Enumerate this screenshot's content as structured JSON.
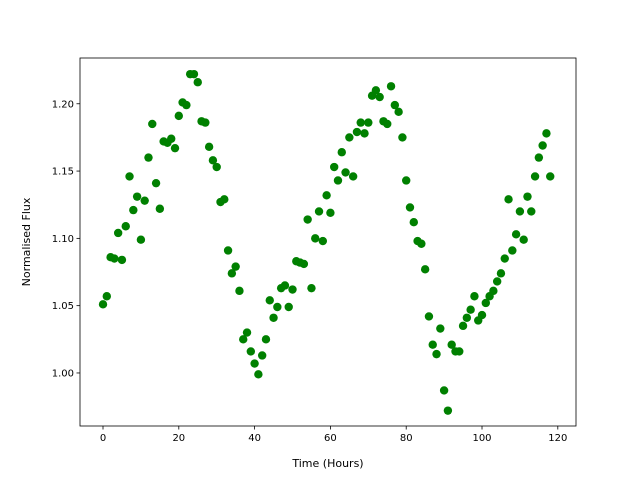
{
  "chart_data": {
    "type": "scatter",
    "x_label": "Time (Hours)",
    "y_label": "Normalised Flux",
    "color": "#008000",
    "x": [
      0,
      1,
      2,
      3,
      4,
      5,
      6,
      7,
      8,
      9,
      10,
      11,
      12,
      13,
      14,
      15,
      16,
      17,
      18,
      19,
      20,
      21,
      22,
      23,
      24,
      25,
      26,
      27,
      28,
      29,
      30,
      31,
      32,
      33,
      34,
      35,
      36,
      37,
      38,
      39,
      40,
      41,
      42,
      43,
      44,
      45,
      46,
      47,
      48,
      49,
      50,
      51,
      52,
      53,
      54,
      55,
      56,
      57,
      58,
      59,
      60,
      61,
      62,
      63,
      64,
      65,
      66,
      67,
      68,
      69,
      70,
      71,
      72,
      73,
      74,
      75,
      76,
      77,
      78,
      79,
      80,
      81,
      82,
      83,
      84,
      85,
      86,
      87,
      88,
      89,
      90,
      91,
      92,
      93,
      94,
      95,
      96,
      97,
      98,
      99,
      100,
      101,
      102,
      103,
      104,
      105,
      106,
      107,
      108,
      109,
      110,
      111,
      112,
      113,
      114,
      115,
      116,
      117,
      118
    ],
    "values": [
      1.051,
      1.057,
      1.086,
      1.085,
      1.104,
      1.084,
      1.109,
      1.146,
      1.121,
      1.131,
      1.099,
      1.128,
      1.16,
      1.185,
      1.141,
      1.122,
      1.172,
      1.171,
      1.174,
      1.167,
      1.191,
      1.201,
      1.199,
      1.222,
      1.222,
      1.216,
      1.187,
      1.186,
      1.168,
      1.158,
      1.153,
      1.127,
      1.129,
      1.091,
      1.074,
      1.079,
      1.061,
      1.025,
      1.03,
      1.016,
      1.007,
      0.999,
      1.013,
      1.025,
      1.054,
      1.041,
      1.049,
      1.063,
      1.065,
      1.049,
      1.062,
      1.083,
      1.082,
      1.081,
      1.114,
      1.063,
      1.1,
      1.12,
      1.098,
      1.132,
      1.119,
      1.153,
      1.143,
      1.164,
      1.149,
      1.175,
      1.146,
      1.179,
      1.186,
      1.178,
      1.186,
      1.206,
      1.21,
      1.205,
      1.187,
      1.185,
      1.213,
      1.199,
      1.194,
      1.175,
      1.143,
      1.123,
      1.112,
      1.098,
      1.096,
      1.077,
      1.042,
      1.021,
      1.014,
      1.033,
      0.987,
      0.972,
      1.021,
      1.016,
      1.016,
      1.035,
      1.041,
      1.047,
      1.057,
      1.039,
      1.043,
      1.052,
      1.057,
      1.061,
      1.068,
      1.074,
      1.085,
      1.129,
      1.091,
      1.103,
      1.12,
      1.099,
      1.131,
      1.12,
      1.146,
      1.16,
      1.169,
      1.178,
      1.146
    ],
    "xlim": [
      -6.07,
      124.8
    ],
    "ylim": [
      0.9606,
      1.234
    ],
    "xticks": [
      0,
      20,
      40,
      60,
      80,
      100,
      120
    ],
    "yticks": [
      {
        "value": 1.0,
        "label": "1.00"
      },
      {
        "value": 1.05,
        "label": "1.05"
      },
      {
        "value": 1.1,
        "label": "1.10"
      },
      {
        "value": 1.15,
        "label": "1.15"
      },
      {
        "value": 1.2,
        "label": "1.20"
      }
    ]
  }
}
